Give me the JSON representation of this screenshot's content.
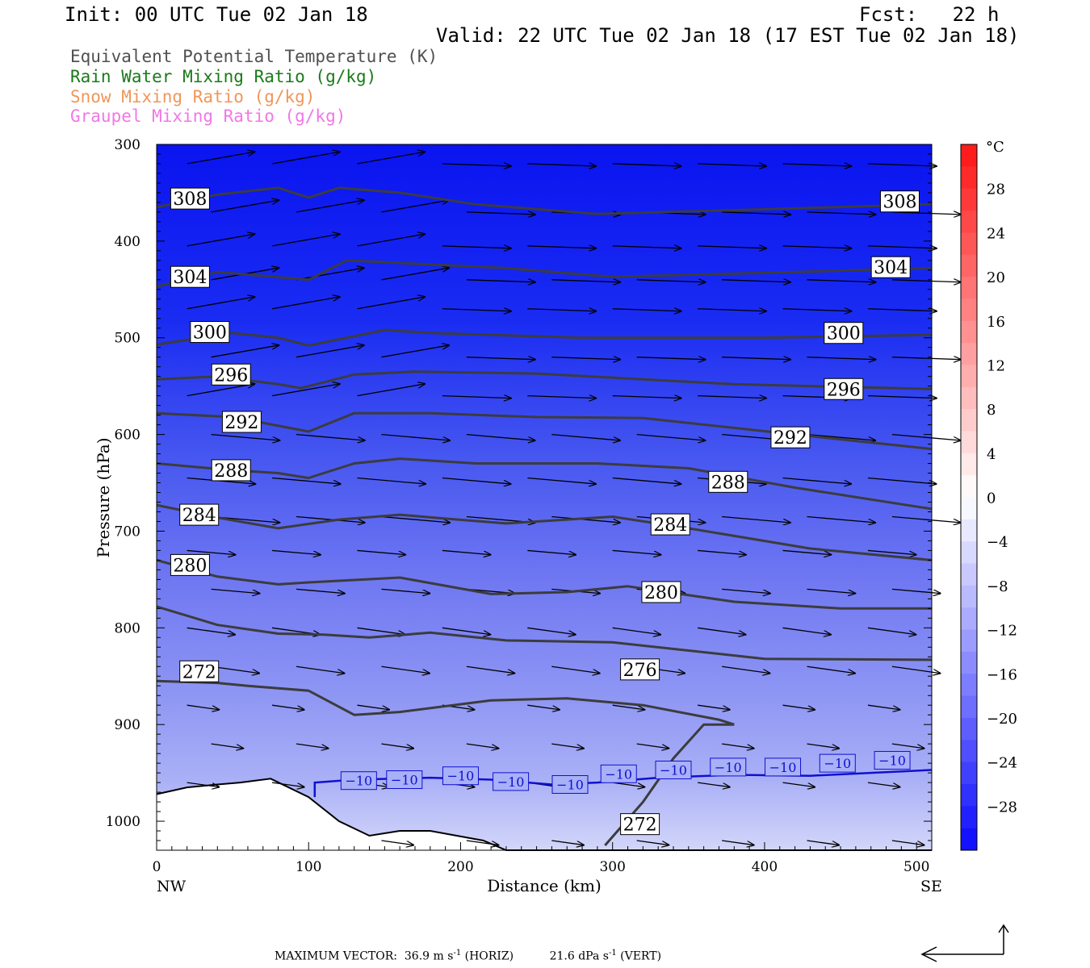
{
  "header": {
    "init": "Init: 00 UTC Tue 02 Jan 18",
    "fcst": "Fcst:   22 h",
    "valid": "Valid: 22 UTC Tue 02 Jan 18 (17 EST Tue 02 Jan 18)"
  },
  "legend": [
    {
      "label": "Equivalent Potential Temperature (K)",
      "color": "#505050"
    },
    {
      "label": "Rain Water Mixing Ratio (g/kg)",
      "color": "#1a7a1a"
    },
    {
      "label": "Snow Mixing Ratio (g/kg)",
      "color": "#f0965a"
    },
    {
      "label": "Graupel Mixing Ratio (g/kg)",
      "color": "#f078e6"
    }
  ],
  "chart_data": {
    "type": "cross-section",
    "xlabel": "Distance (km)",
    "ylabel": "Pressure (hPa)",
    "xlim": [
      0,
      510
    ],
    "ylim": [
      1030,
      300
    ],
    "x_ticks": [
      0,
      100,
      200,
      300,
      400,
      500
    ],
    "y_ticks": [
      300,
      400,
      500,
      600,
      700,
      800,
      900,
      1000
    ],
    "x_endpoints": {
      "left": "NW",
      "right": "SE"
    },
    "theta_e_contours": [
      {
        "value": 308,
        "points": [
          [
            0,
            365
          ],
          [
            40,
            352
          ],
          [
            80,
            345
          ],
          [
            100,
            355
          ],
          [
            120,
            345
          ],
          [
            160,
            350
          ],
          [
            210,
            362
          ],
          [
            290,
            372
          ],
          [
            380,
            368
          ],
          [
            510,
            362
          ]
        ]
      },
      {
        "value": 304,
        "points": [
          [
            0,
            447
          ],
          [
            40,
            432
          ],
          [
            100,
            440
          ],
          [
            125,
            420
          ],
          [
            230,
            428
          ],
          [
            300,
            437
          ],
          [
            420,
            432
          ],
          [
            510,
            428
          ]
        ]
      },
      {
        "value": 300,
        "points": [
          [
            0,
            507
          ],
          [
            50,
            495
          ],
          [
            80,
            500
          ],
          [
            100,
            508
          ],
          [
            150,
            492
          ],
          [
            180,
            495
          ],
          [
            280,
            500
          ],
          [
            400,
            500
          ],
          [
            510,
            497
          ]
        ]
      },
      {
        "value": 296,
        "points": [
          [
            0,
            543
          ],
          [
            40,
            540
          ],
          [
            80,
            548
          ],
          [
            95,
            552
          ],
          [
            130,
            538
          ],
          [
            170,
            535
          ],
          [
            250,
            537
          ],
          [
            380,
            548
          ],
          [
            510,
            553
          ]
        ]
      },
      {
        "value": 292,
        "points": [
          [
            0,
            578
          ],
          [
            50,
            582
          ],
          [
            100,
            597
          ],
          [
            130,
            578
          ],
          [
            180,
            578
          ],
          [
            250,
            582
          ],
          [
            320,
            583
          ],
          [
            420,
            600
          ],
          [
            510,
            615
          ]
        ]
      },
      {
        "value": 288,
        "points": [
          [
            0,
            630
          ],
          [
            50,
            637
          ],
          [
            80,
            640
          ],
          [
            100,
            645
          ],
          [
            130,
            630
          ],
          [
            160,
            625
          ],
          [
            210,
            630
          ],
          [
            290,
            630
          ],
          [
            350,
            635
          ],
          [
            420,
            655
          ],
          [
            510,
            677
          ]
        ]
      },
      {
        "value": 284,
        "points": [
          [
            0,
            673
          ],
          [
            40,
            686
          ],
          [
            80,
            697
          ],
          [
            120,
            688
          ],
          [
            160,
            683
          ],
          [
            190,
            687
          ],
          [
            230,
            692
          ],
          [
            300,
            685
          ],
          [
            350,
            697
          ],
          [
            430,
            718
          ],
          [
            510,
            730
          ]
        ]
      },
      {
        "value": 280,
        "points": [
          [
            0,
            730
          ],
          [
            40,
            747
          ],
          [
            80,
            755
          ],
          [
            100,
            753
          ],
          [
            160,
            748
          ],
          [
            220,
            765
          ],
          [
            270,
            763
          ],
          [
            310,
            757
          ],
          [
            380,
            773
          ],
          [
            450,
            780
          ],
          [
            510,
            780
          ]
        ]
      },
      {
        "value": 276,
        "points": [
          [
            0,
            778
          ],
          [
            40,
            797
          ],
          [
            80,
            806
          ],
          [
            110,
            807
          ],
          [
            140,
            810
          ],
          [
            180,
            805
          ],
          [
            230,
            813
          ],
          [
            300,
            815
          ],
          [
            400,
            832
          ],
          [
            510,
            833
          ]
        ]
      },
      {
        "value": 272,
        "points": [
          [
            0,
            855
          ],
          [
            40,
            857
          ],
          [
            60,
            860
          ],
          [
            100,
            865
          ],
          [
            130,
            890
          ],
          [
            160,
            887
          ],
          [
            220,
            875
          ],
          [
            270,
            873
          ],
          [
            320,
            880
          ],
          [
            370,
            895
          ],
          [
            380,
            900
          ]
        ]
      },
      {
        "value": 272,
        "points": [
          [
            380,
            900
          ],
          [
            360,
            900
          ],
          [
            340,
            935
          ],
          [
            320,
            980
          ],
          [
            295,
            1025
          ]
        ]
      }
    ],
    "theta_e_labels": [
      {
        "value": 308,
        "x": 22,
        "p": 356
      },
      {
        "value": 308,
        "x": 489,
        "p": 359
      },
      {
        "value": 304,
        "x": 22,
        "p": 437
      },
      {
        "value": 304,
        "x": 483,
        "p": 427
      },
      {
        "value": 300,
        "x": 35,
        "p": 494
      },
      {
        "value": 300,
        "x": 452,
        "p": 495
      },
      {
        "value": 296,
        "x": 49,
        "p": 538
      },
      {
        "value": 296,
        "x": 452,
        "p": 553
      },
      {
        "value": 292,
        "x": 56,
        "p": 587
      },
      {
        "value": 292,
        "x": 417,
        "p": 603
      },
      {
        "value": 288,
        "x": 49,
        "p": 637
      },
      {
        "value": 288,
        "x": 376,
        "p": 649
      },
      {
        "value": 284,
        "x": 28,
        "p": 683
      },
      {
        "value": 284,
        "x": 338,
        "p": 693
      },
      {
        "value": 280,
        "x": 22,
        "p": 735
      },
      {
        "value": 280,
        "x": 332,
        "p": 763
      },
      {
        "value": 276,
        "x": 318,
        "p": 843
      },
      {
        "value": 272,
        "x": 28,
        "p": 845
      },
      {
        "value": 272,
        "x": 318,
        "p": 1003
      }
    ],
    "isotherm_minus10": {
      "value": -10,
      "color": "#1010d0",
      "points": [
        [
          104,
          975
        ],
        [
          104,
          960
        ],
        [
          130,
          957
        ],
        [
          180,
          955
        ],
        [
          220,
          957
        ],
        [
          260,
          962
        ],
        [
          290,
          960
        ],
        [
          330,
          955
        ],
        [
          380,
          952
        ],
        [
          430,
          953
        ],
        [
          510,
          947
        ]
      ]
    },
    "isotherm_labels": [
      {
        "x": 133,
        "p": 958
      },
      {
        "x": 163,
        "p": 957
      },
      {
        "x": 200,
        "p": 953
      },
      {
        "x": 233,
        "p": 959
      },
      {
        "x": 272,
        "p": 962
      },
      {
        "x": 304,
        "p": 951
      },
      {
        "x": 340,
        "p": 947
      },
      {
        "x": 376,
        "p": 944
      },
      {
        "x": 412,
        "p": 944
      },
      {
        "x": 448,
        "p": 940
      },
      {
        "x": 484,
        "p": 937
      }
    ],
    "terrain_surface_hpa": [
      [
        0,
        972
      ],
      [
        20,
        965
      ],
      [
        40,
        962
      ],
      [
        55,
        960
      ],
      [
        75,
        956
      ],
      [
        100,
        975
      ],
      [
        120,
        1000
      ],
      [
        140,
        1015
      ],
      [
        160,
        1010
      ],
      [
        180,
        1010
      ],
      [
        215,
        1020
      ],
      [
        230,
        1030
      ],
      [
        510,
        1030
      ]
    ],
    "temperature_scale": {
      "unit": "°C",
      "ticks": [
        28,
        24,
        20,
        16,
        12,
        8,
        4,
        0,
        -4,
        -8,
        -12,
        -16,
        -20,
        -24,
        -28
      ],
      "range": [
        -32,
        32
      ]
    },
    "max_vector": {
      "horiz": "36.9",
      "horiz_unit": "m s",
      "horiz_exp": "-1",
      "horiz_tag": "(HORIZ)",
      "vert": "21.6",
      "vert_unit": "dPa s",
      "vert_exp": "-1",
      "vert_tag": "(VERT)",
      "label": "MAXIMUM VECTOR:"
    }
  }
}
